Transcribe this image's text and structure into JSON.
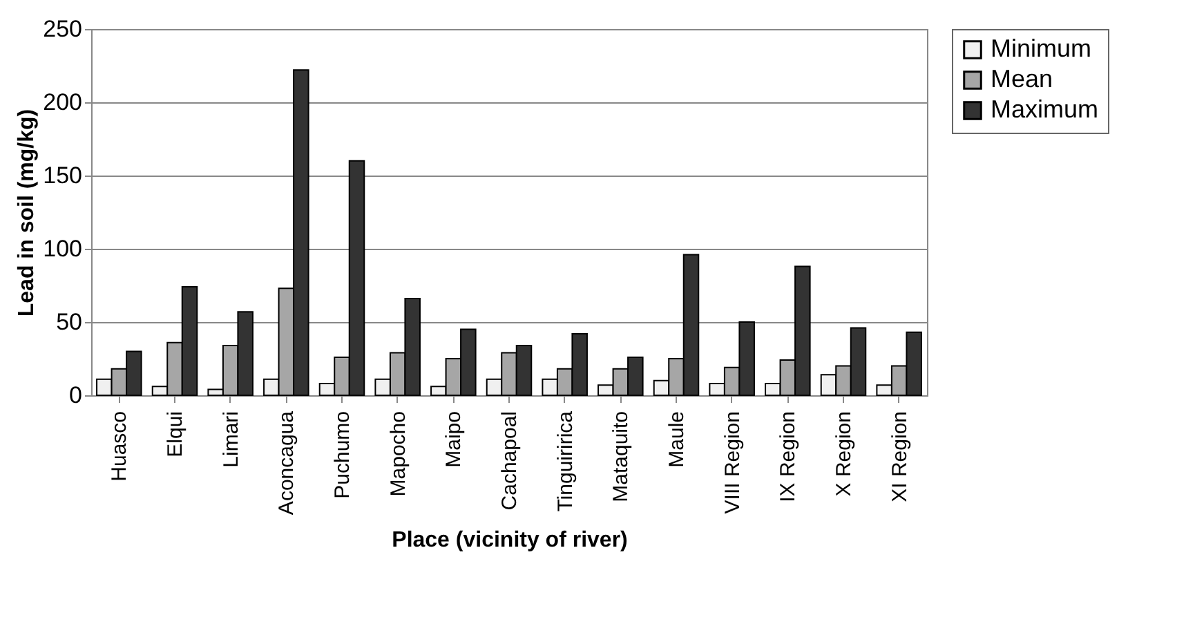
{
  "chart_data": {
    "type": "bar",
    "xlabel": "Place (vicinity of river)",
    "ylabel": "Lead in soil (mg/kg)",
    "categories": [
      "Huasco",
      "Elqui",
      "Limari",
      "Aconcagua",
      "Puchumo",
      "Mapocho",
      "Maipo",
      "Cachapoal",
      "Tinguiririca",
      "Mataquito",
      "Maule",
      "VIII Region",
      "IX Region",
      "X Region",
      "XI Region"
    ],
    "series": [
      {
        "name": "Minimum",
        "color": "#f0f0f0",
        "values": [
          11,
          6,
          4,
          11,
          8,
          11,
          6,
          11,
          11,
          7,
          10,
          8,
          8,
          14,
          7
        ]
      },
      {
        "name": "Mean",
        "color": "#a6a6a6",
        "values": [
          18,
          36,
          34,
          73,
          26,
          29,
          25,
          29,
          18,
          18,
          25,
          19,
          24,
          20,
          20
        ]
      },
      {
        "name": "Maximum",
        "color": "#333333",
        "values": [
          30,
          74,
          57,
          222,
          160,
          66,
          45,
          34,
          42,
          26,
          96,
          50,
          88,
          46,
          43
        ]
      }
    ],
    "ylim": [
      0,
      250
    ],
    "yticks": [
      0,
      50,
      100,
      150,
      200,
      250
    ],
    "grid": "y",
    "legend": "top right"
  }
}
